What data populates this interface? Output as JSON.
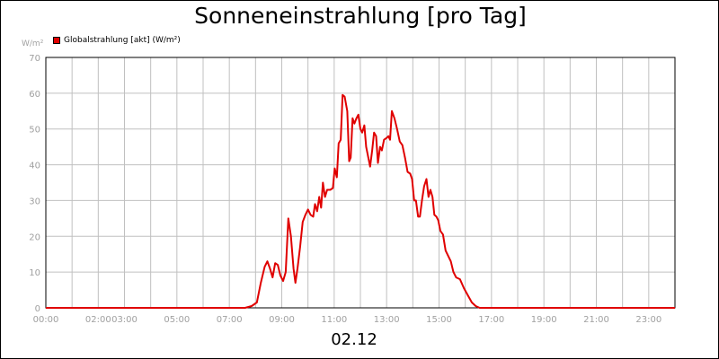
{
  "chart_data": {
    "type": "line",
    "title": "Sonneneinstrahlung [pro Tag]",
    "xlabel": "02.12",
    "ylabel": "W/m²",
    "ylim": [
      0,
      70
    ],
    "xlim": [
      0,
      24
    ],
    "yticks": [
      0,
      10,
      20,
      30,
      40,
      50,
      60,
      70
    ],
    "xticks": [
      {
        "pos": 0,
        "label": "00:00"
      },
      {
        "pos": 2,
        "label": "02:00"
      },
      {
        "pos": 3,
        "label": "03:00"
      },
      {
        "pos": 5,
        "label": "05:00"
      },
      {
        "pos": 7,
        "label": "07:00"
      },
      {
        "pos": 9,
        "label": "09:00"
      },
      {
        "pos": 11,
        "label": "11:00"
      },
      {
        "pos": 13,
        "label": "13:00"
      },
      {
        "pos": 15,
        "label": "15:00"
      },
      {
        "pos": 17,
        "label": "17:00"
      },
      {
        "pos": 19,
        "label": "19:00"
      },
      {
        "pos": 21,
        "label": "21:00"
      },
      {
        "pos": 23,
        "label": "23:00"
      }
    ],
    "grid": true,
    "legend_position": "top-left",
    "series": [
      {
        "name": "Globalstrahlung [akt] (W/m²)",
        "color": "#e00000",
        "points": [
          [
            0,
            0
          ],
          [
            7.6,
            0
          ],
          [
            7.85,
            0.5
          ],
          [
            8.05,
            1.5
          ],
          [
            8.2,
            7
          ],
          [
            8.35,
            11.5
          ],
          [
            8.45,
            13
          ],
          [
            8.55,
            11
          ],
          [
            8.65,
            8.5
          ],
          [
            8.75,
            12.5
          ],
          [
            8.85,
            12
          ],
          [
            8.95,
            9
          ],
          [
            9.05,
            7.5
          ],
          [
            9.15,
            10
          ],
          [
            9.25,
            25
          ],
          [
            9.35,
            20
          ],
          [
            9.45,
            11
          ],
          [
            9.52,
            7
          ],
          [
            9.6,
            11
          ],
          [
            9.7,
            17
          ],
          [
            9.8,
            24
          ],
          [
            9.9,
            26
          ],
          [
            10.0,
            27.5
          ],
          [
            10.1,
            26
          ],
          [
            10.2,
            25.5
          ],
          [
            10.27,
            29
          ],
          [
            10.35,
            27
          ],
          [
            10.43,
            31
          ],
          [
            10.5,
            28
          ],
          [
            10.57,
            35
          ],
          [
            10.65,
            31
          ],
          [
            10.73,
            33
          ],
          [
            10.85,
            33
          ],
          [
            10.95,
            33.5
          ],
          [
            11.02,
            39
          ],
          [
            11.1,
            36.5
          ],
          [
            11.17,
            46
          ],
          [
            11.25,
            47
          ],
          [
            11.32,
            59.5
          ],
          [
            11.4,
            59
          ],
          [
            11.5,
            55
          ],
          [
            11.57,
            41
          ],
          [
            11.63,
            42
          ],
          [
            11.7,
            53
          ],
          [
            11.77,
            51.5
          ],
          [
            11.85,
            53
          ],
          [
            11.92,
            54
          ],
          [
            12.0,
            50
          ],
          [
            12.07,
            49
          ],
          [
            12.15,
            51
          ],
          [
            12.22,
            45
          ],
          [
            12.3,
            42
          ],
          [
            12.37,
            39.5
          ],
          [
            12.45,
            44
          ],
          [
            12.52,
            49
          ],
          [
            12.6,
            48
          ],
          [
            12.67,
            40.5
          ],
          [
            12.75,
            45
          ],
          [
            12.82,
            44
          ],
          [
            12.9,
            47
          ],
          [
            13.0,
            47.5
          ],
          [
            13.07,
            48
          ],
          [
            13.13,
            47
          ],
          [
            13.2,
            55
          ],
          [
            13.3,
            53
          ],
          [
            13.4,
            50
          ],
          [
            13.5,
            46.5
          ],
          [
            13.6,
            45.5
          ],
          [
            13.7,
            42
          ],
          [
            13.8,
            38
          ],
          [
            13.9,
            37.5
          ],
          [
            13.97,
            36
          ],
          [
            14.05,
            30
          ],
          [
            14.12,
            30
          ],
          [
            14.2,
            25.5
          ],
          [
            14.27,
            25.5
          ],
          [
            14.35,
            30
          ],
          [
            14.43,
            34
          ],
          [
            14.52,
            36
          ],
          [
            14.6,
            31
          ],
          [
            14.67,
            33
          ],
          [
            14.75,
            31
          ],
          [
            14.82,
            26
          ],
          [
            14.9,
            25.5
          ],
          [
            14.97,
            24.5
          ],
          [
            15.05,
            21.5
          ],
          [
            15.15,
            20.5
          ],
          [
            15.25,
            16
          ],
          [
            15.35,
            14.5
          ],
          [
            15.45,
            13
          ],
          [
            15.55,
            10
          ],
          [
            15.65,
            8.5
          ],
          [
            15.8,
            8
          ],
          [
            15.95,
            5.5
          ],
          [
            16.1,
            3.5
          ],
          [
            16.25,
            1.5
          ],
          [
            16.4,
            0.5
          ],
          [
            16.55,
            0
          ],
          [
            24,
            0
          ]
        ]
      }
    ]
  }
}
